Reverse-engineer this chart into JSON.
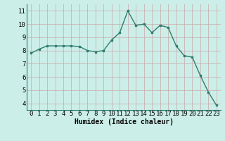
{
  "x": [
    0,
    1,
    2,
    3,
    4,
    5,
    6,
    7,
    8,
    9,
    10,
    11,
    12,
    13,
    14,
    15,
    16,
    17,
    18,
    19,
    20,
    21,
    22,
    23
  ],
  "y": [
    7.8,
    8.1,
    8.35,
    8.35,
    8.35,
    8.35,
    8.3,
    8.0,
    7.9,
    8.0,
    8.8,
    9.35,
    11.0,
    9.9,
    10.0,
    9.35,
    9.9,
    9.75,
    8.35,
    7.6,
    7.5,
    6.1,
    4.85,
    3.85
  ],
  "line_color": "#2e7d6e",
  "marker": "s",
  "marker_size": 2.0,
  "line_width": 1.0,
  "bg_color": "#cceee8",
  "grid_color": "#b8d8d2",
  "grid_color_major": "#c8a0a0",
  "xlabel": "Humidex (Indice chaleur)",
  "xlabel_fontsize": 7,
  "tick_fontsize": 6.5,
  "xlim": [
    -0.5,
    23.5
  ],
  "ylim": [
    3.5,
    11.5
  ],
  "yticks": [
    4,
    5,
    6,
    7,
    8,
    9,
    10,
    11
  ],
  "xticks": [
    0,
    1,
    2,
    3,
    4,
    5,
    6,
    7,
    8,
    9,
    10,
    11,
    12,
    13,
    14,
    15,
    16,
    17,
    18,
    19,
    20,
    21,
    22,
    23
  ]
}
